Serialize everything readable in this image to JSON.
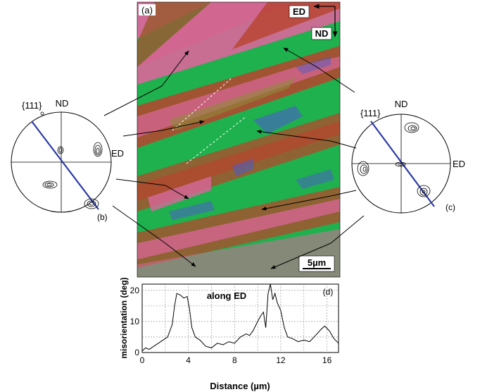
{
  "panels": {
    "a": "(a)",
    "b": "(b)",
    "c": "(c)",
    "d": "(d)"
  },
  "ebsd_map": {
    "axis_ed": "ED",
    "axis_nd": "ND",
    "scale_bar": "5µm",
    "colors": {
      "green": "#1fb14e",
      "pink": "#d9679a",
      "brown": "#9a5a31",
      "rust": "#b8442e",
      "blue": "#4a5cc9",
      "olive": "#8f8a3a"
    }
  },
  "pole_figure_left": {
    "family": "{111}",
    "top_axis": "ND",
    "right_axis": "ED"
  },
  "pole_figure_right": {
    "family": "{111}",
    "top_axis": "ND",
    "right_axis": "ED"
  },
  "chart_data": {
    "type": "line",
    "annotation": "along ED",
    "xlabel": "Distance (µm)",
    "ylabel": "misorientation (deg)",
    "xlim": [
      0,
      17
    ],
    "ylim": [
      0,
      22
    ],
    "xticks": [
      0,
      4,
      8,
      12,
      16
    ],
    "yticks": [
      0,
      10,
      20
    ],
    "grid": true,
    "series": [
      {
        "x": [
          0,
          0.3,
          0.6,
          1.0,
          1.4,
          1.8,
          2.2,
          2.6,
          2.8,
          3.0,
          3.3,
          3.6,
          3.9,
          4.1,
          4.3,
          4.6,
          5.0,
          5.5,
          6.0,
          6.5,
          7.0,
          7.5,
          8.0,
          8.5,
          9.0,
          9.3,
          9.6,
          10.0,
          10.3,
          10.5,
          10.7,
          10.9,
          11.1,
          11.3,
          11.5,
          11.7,
          12.0,
          12.3,
          12.6,
          13.0,
          13.5,
          14.0,
          14.5,
          15.0,
          15.5,
          15.8,
          16.2,
          16.6,
          17.0
        ],
        "y": [
          0.5,
          1.5,
          1.0,
          2.0,
          3.0,
          4.0,
          5.0,
          9.0,
          15.0,
          19.0,
          18.5,
          17.5,
          18.0,
          14.0,
          8.0,
          5.0,
          4.0,
          2.0,
          1.5,
          3.0,
          2.5,
          3.5,
          3.0,
          5.0,
          6.0,
          5.5,
          7.0,
          10.0,
          12.0,
          13.0,
          8.0,
          19.0,
          22.0,
          17.0,
          19.0,
          16.0,
          13.5,
          8.0,
          5.0,
          4.5,
          3.5,
          4.0,
          3.5,
          5.5,
          7.5,
          8.5,
          7.0,
          4.5,
          3.0
        ]
      }
    ]
  }
}
